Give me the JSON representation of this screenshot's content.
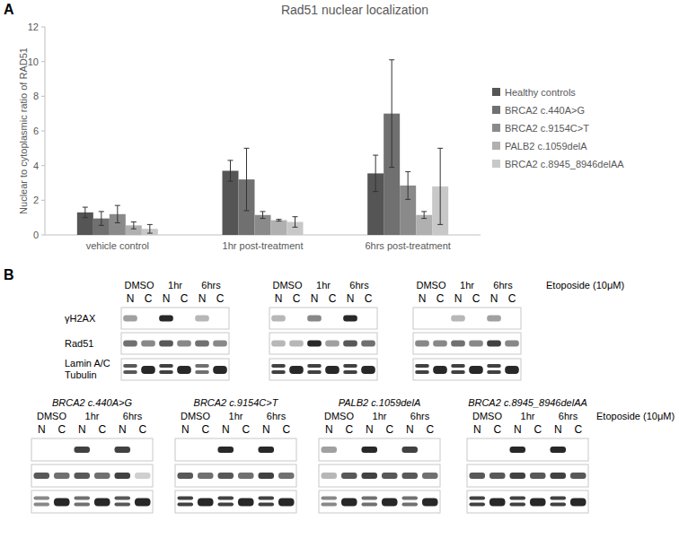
{
  "chart_data": {
    "type": "bar",
    "title": "Rad51 nuclear localization",
    "y_label": "Nuclear to cytoplasmic ratio of RAD51",
    "categories": [
      "vehicle control",
      "1hr post-treatment",
      "6hrs post-treatment"
    ],
    "series": [
      {
        "name": "Healthy controls",
        "color": "#555555",
        "values": [
          1.3,
          3.7,
          3.55
        ],
        "errors": [
          0.3,
          0.6,
          1.05
        ]
      },
      {
        "name": "BRCA2 c.440A>G",
        "color": "#707070",
        "values": [
          0.95,
          3.2,
          7.0
        ],
        "errors": [
          0.4,
          1.8,
          3.1
        ]
      },
      {
        "name": "BRCA2 c.9154C>T",
        "color": "#8a8a8a",
        "values": [
          1.2,
          1.15,
          2.85
        ],
        "errors": [
          0.5,
          0.2,
          0.8
        ]
      },
      {
        "name": "PALB2 c.1059delA",
        "color": "#b0b0b0",
        "values": [
          0.55,
          0.85,
          1.15
        ],
        "errors": [
          0.2,
          0.05,
          0.2
        ]
      },
      {
        "name": "BRCA2 c.8945_8946delAA",
        "color": "#c8c8c8",
        "values": [
          0.35,
          0.75,
          2.8
        ],
        "errors": [
          0.25,
          0.3,
          2.2
        ]
      }
    ],
    "ylim": [
      0,
      12
    ],
    "yticks": [
      0,
      2,
      4,
      6,
      8,
      10,
      12
    ],
    "grid": false,
    "legend": "right"
  },
  "panel_labels": [
    "A",
    "B"
  ],
  "blots": {
    "treatment": "Etoposide (10μM)",
    "conditions": [
      "DMSO",
      "1hr",
      "6hrs"
    ],
    "fractions": [
      "N",
      "C"
    ],
    "row_labels": [
      "γH2AX",
      "Rad51",
      "Lamin A/C",
      "Tubulin"
    ],
    "groups": [
      {
        "intensities": [
          [
            0.4,
            0,
            0.9,
            0,
            0.3,
            0
          ],
          [
            0.6,
            0.5,
            0.7,
            0.5,
            0.6,
            0.5
          ],
          [
            0.7,
            0.9,
            0.8,
            0.9,
            0.6,
            0.9
          ]
        ]
      },
      {
        "intensities": [
          [
            0.3,
            0,
            0.5,
            0,
            0.9,
            0
          ],
          [
            0.3,
            0.3,
            0.9,
            0.4,
            0.7,
            0.6
          ],
          [
            0.8,
            0.9,
            0.8,
            0.9,
            0.8,
            0.9
          ]
        ]
      },
      {
        "intensities": [
          [
            0,
            0,
            0.3,
            0,
            0.4,
            0
          ],
          [
            0.5,
            0.5,
            0.6,
            0.5,
            0.8,
            0.5
          ],
          [
            0.8,
            0.9,
            0.8,
            0.9,
            0.8,
            0.9
          ]
        ]
      },
      {
        "title": "BRCA2 c.440A>G",
        "intensities": [
          [
            0,
            0,
            0.8,
            0,
            0.8,
            0
          ],
          [
            0.7,
            0.6,
            0.7,
            0.6,
            0.8,
            0.2
          ],
          [
            0.5,
            0.9,
            0.6,
            0.9,
            0.7,
            0.9
          ]
        ]
      },
      {
        "title": "BRCA2 c.9154C>T",
        "intensities": [
          [
            0,
            0,
            0.9,
            0,
            0.9,
            0
          ],
          [
            0.7,
            0.6,
            0.7,
            0.6,
            0.8,
            0.6
          ],
          [
            0.8,
            0.9,
            0.8,
            0.9,
            0.8,
            0.9
          ]
        ]
      },
      {
        "title": "PALB2 c.1059delA",
        "intensities": [
          [
            0.4,
            0,
            0.9,
            0,
            0.8,
            0
          ],
          [
            0.3,
            0.7,
            0.8,
            0.7,
            0.7,
            0.6
          ],
          [
            0.5,
            0.9,
            0.6,
            0.9,
            0.6,
            0.9
          ]
        ]
      },
      {
        "title": "BRCA2 c.8945_8946delAA",
        "intensities": [
          [
            0,
            0,
            0.9,
            0,
            0.9,
            0
          ],
          [
            0.7,
            0.7,
            0.8,
            0.7,
            0.8,
            0.7
          ],
          [
            0.8,
            0.9,
            0.8,
            0.9,
            0.8,
            0.9
          ]
        ]
      }
    ]
  }
}
